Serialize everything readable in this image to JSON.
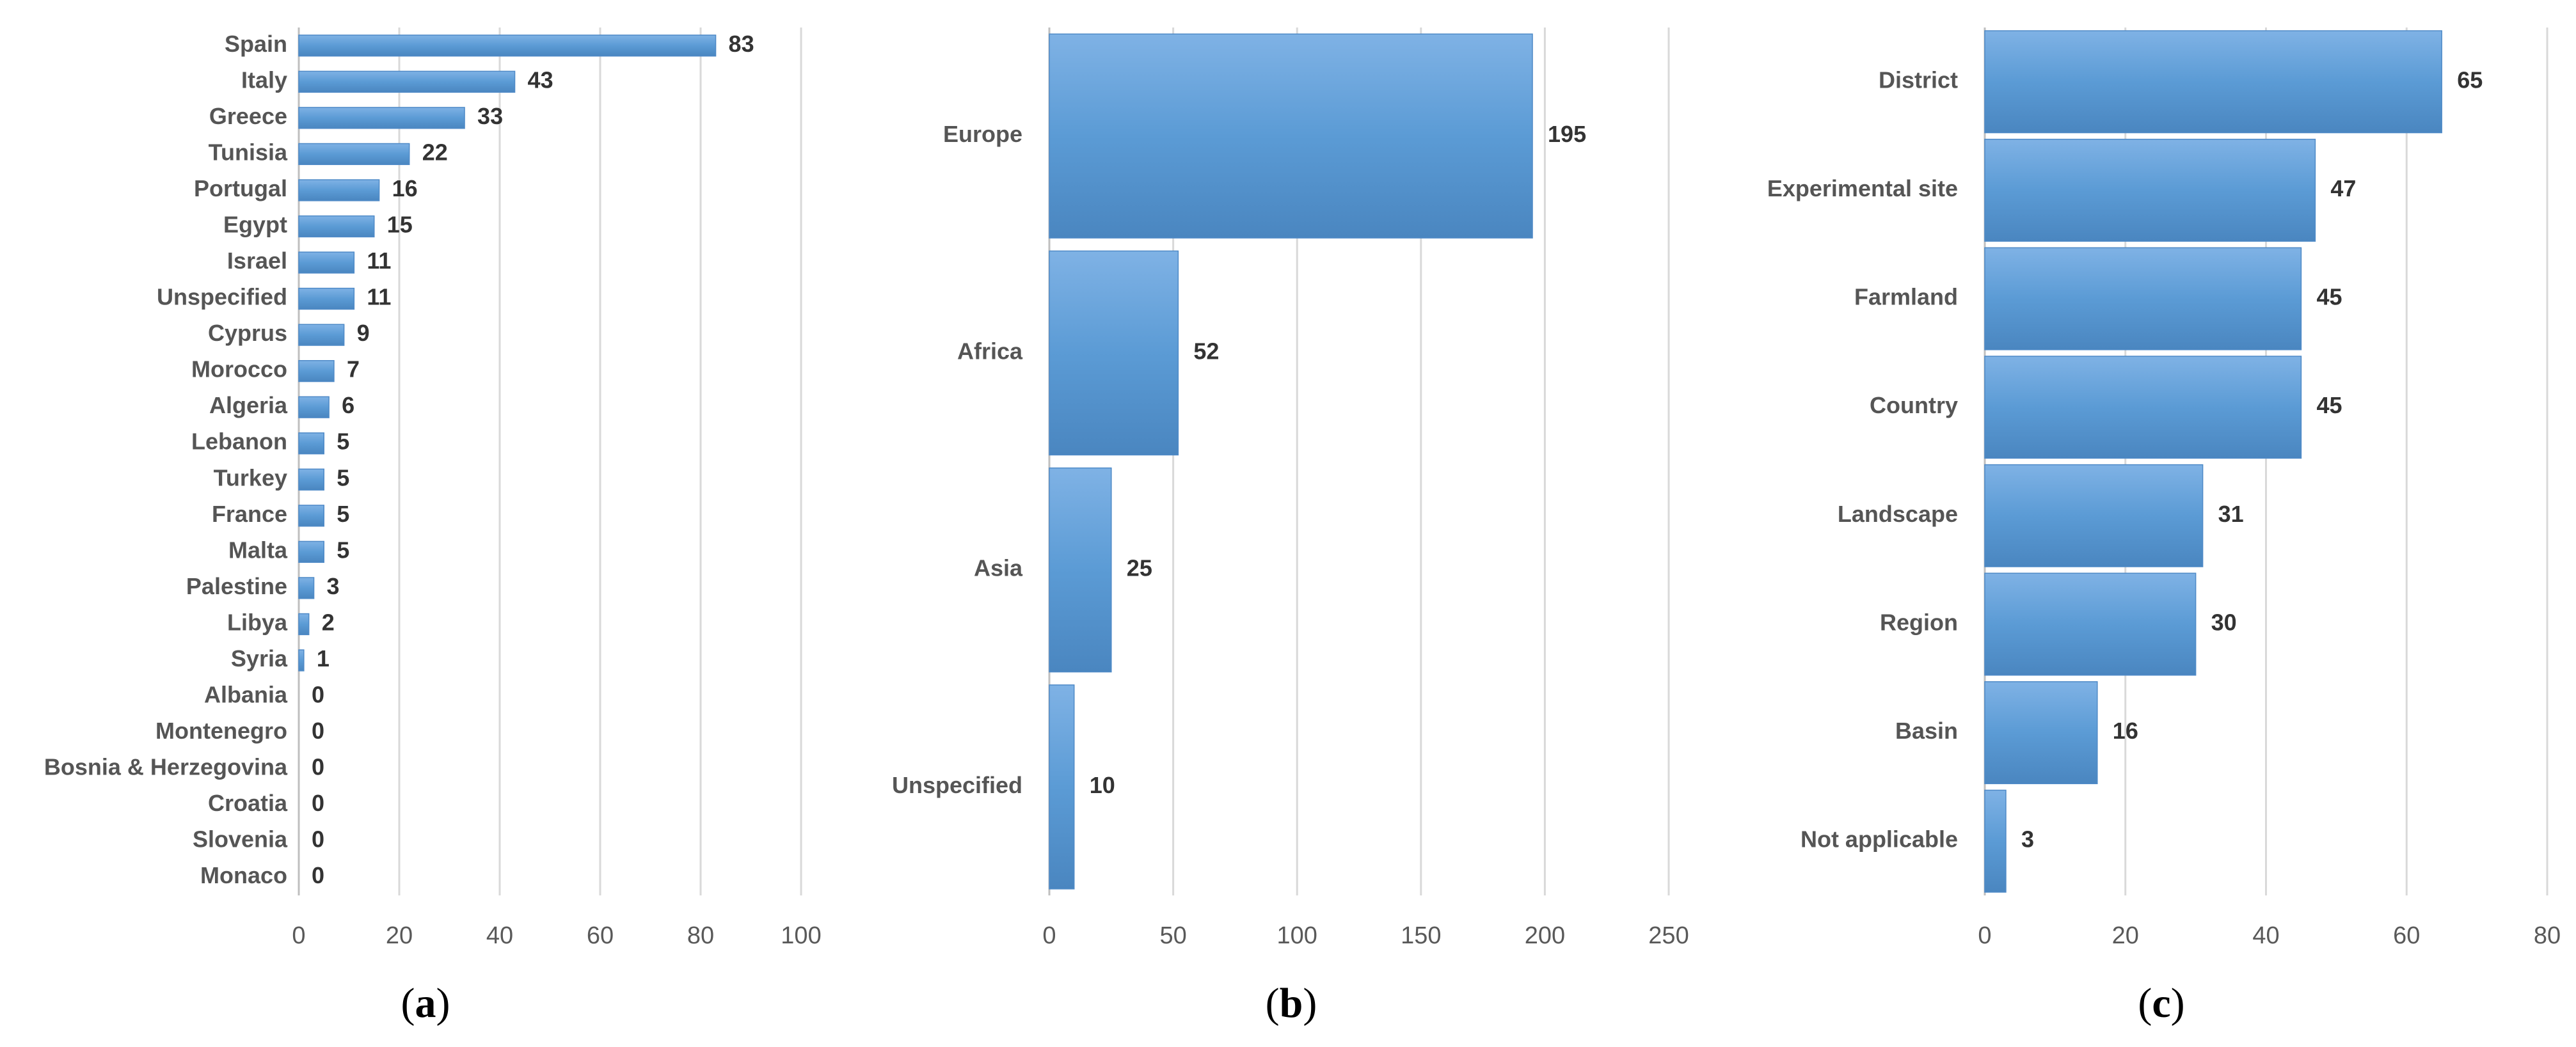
{
  "chart_data": [
    {
      "panel": "(a)",
      "type": "bar",
      "orientation": "horizontal",
      "categories": [
        "Spain",
        "Italy",
        "Greece",
        "Tunisia",
        "Portugal",
        "Egypt",
        "Israel",
        "Unspecified",
        "Cyprus",
        "Morocco",
        "Algeria",
        "Lebanon",
        "Turkey",
        "France",
        "Malta",
        "Palestine",
        "Libya",
        "Syria",
        "Albania",
        "Montenegro",
        "Bosnia & Herzegovina",
        "Croatia",
        "Slovenia",
        "Monaco"
      ],
      "values": [
        83,
        43,
        33,
        22,
        16,
        15,
        11,
        11,
        9,
        7,
        6,
        5,
        5,
        5,
        5,
        3,
        2,
        1,
        0,
        0,
        0,
        0,
        0,
        0
      ],
      "xlim": [
        0,
        100
      ],
      "xticks": [
        0,
        20,
        40,
        60,
        80,
        100
      ],
      "grid": true,
      "bar_color": "#5b9bd5"
    },
    {
      "panel": "(b)",
      "type": "bar",
      "orientation": "horizontal",
      "categories": [
        "Europe",
        "Africa",
        "Asia",
        "Unspecified"
      ],
      "values": [
        195,
        52,
        25,
        10
      ],
      "xlim": [
        0,
        250
      ],
      "xticks": [
        0,
        50,
        100,
        150,
        200,
        250
      ],
      "grid": true,
      "bar_color": "#5b9bd5"
    },
    {
      "panel": "(c)",
      "type": "bar",
      "orientation": "horizontal",
      "categories": [
        "District",
        "Experimental site",
        "Farmland",
        "Country",
        "Landscape",
        "Region",
        "Basin",
        "Not applicable"
      ],
      "values": [
        65,
        47,
        45,
        45,
        31,
        30,
        16,
        3
      ],
      "xlim": [
        0,
        80
      ],
      "xticks": [
        0,
        20,
        40,
        60,
        80
      ],
      "grid": true,
      "bar_color": "#5b9bd5"
    }
  ]
}
